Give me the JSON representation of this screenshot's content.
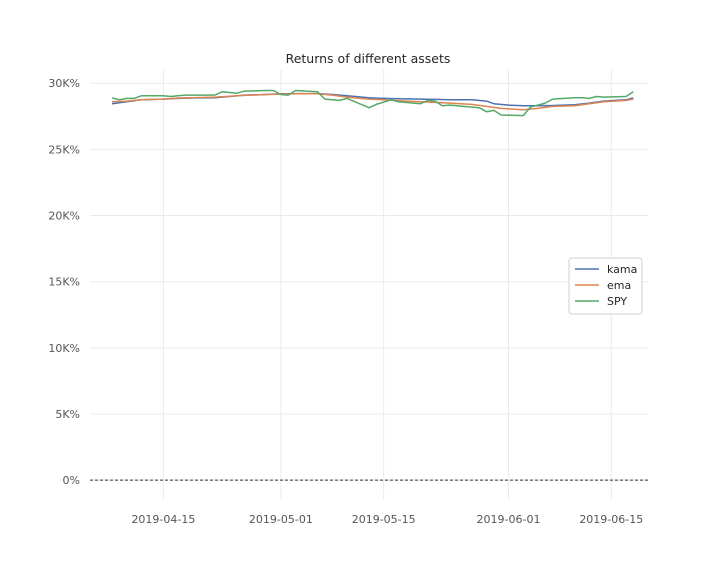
{
  "chart_data": {
    "type": "line",
    "title": "Returns of different assets",
    "xlabel": "",
    "ylabel": "",
    "x_range": [
      "2019-04-05",
      "2019-06-20"
    ],
    "ylim": [
      -1500,
      31000
    ],
    "y_ticks": [
      0,
      5000,
      10000,
      15000,
      20000,
      25000,
      30000
    ],
    "y_tick_labels": [
      "0%",
      "5K%",
      "10K%",
      "15K%",
      "20K%",
      "25K%",
      "30K%"
    ],
    "x_ticks": [
      "2019-04-15",
      "2019-05-01",
      "2019-05-15",
      "2019-06-01",
      "2019-06-15"
    ],
    "x_tick_labels": [
      "2019-04-15",
      "2019-05-01",
      "2019-05-15",
      "2019-06-01",
      "2019-06-15"
    ],
    "grid": true,
    "legend_position": "right",
    "reference_line": {
      "y": 0,
      "style": "dashed",
      "color": "#333333"
    },
    "series": [
      {
        "name": "kama",
        "color": "#4c72b0",
        "points": [
          [
            "2019-04-08",
            28450
          ],
          [
            "2019-04-10",
            28600
          ],
          [
            "2019-04-12",
            28750
          ],
          [
            "2019-04-15",
            28800
          ],
          [
            "2019-04-17",
            28850
          ],
          [
            "2019-04-19",
            28880
          ],
          [
            "2019-04-22",
            28900
          ],
          [
            "2019-04-24",
            29000
          ],
          [
            "2019-04-26",
            29100
          ],
          [
            "2019-04-29",
            29150
          ],
          [
            "2019-05-01",
            29200
          ],
          [
            "2019-05-03",
            29220
          ],
          [
            "2019-05-06",
            29220
          ],
          [
            "2019-05-08",
            29150
          ],
          [
            "2019-05-10",
            29050
          ],
          [
            "2019-05-13",
            28900
          ],
          [
            "2019-05-15",
            28850
          ],
          [
            "2019-05-17",
            28820
          ],
          [
            "2019-05-20",
            28800
          ],
          [
            "2019-05-22",
            28780
          ],
          [
            "2019-05-24",
            28750
          ],
          [
            "2019-05-27",
            28750
          ],
          [
            "2019-05-29",
            28650
          ],
          [
            "2019-05-30",
            28450
          ],
          [
            "2019-06-01",
            28350
          ],
          [
            "2019-06-03",
            28300
          ],
          [
            "2019-06-05",
            28300
          ],
          [
            "2019-06-07",
            28320
          ],
          [
            "2019-06-10",
            28380
          ],
          [
            "2019-06-12",
            28500
          ],
          [
            "2019-06-14",
            28650
          ],
          [
            "2019-06-17",
            28750
          ],
          [
            "2019-06-18",
            28900
          ]
        ]
      },
      {
        "name": "ema",
        "color": "#dd8452",
        "points": [
          [
            "2019-04-08",
            28600
          ],
          [
            "2019-04-10",
            28650
          ],
          [
            "2019-04-12",
            28750
          ],
          [
            "2019-04-15",
            28800
          ],
          [
            "2019-04-17",
            28880
          ],
          [
            "2019-04-19",
            28900
          ],
          [
            "2019-04-22",
            28950
          ],
          [
            "2019-04-24",
            29020
          ],
          [
            "2019-04-26",
            29080
          ],
          [
            "2019-04-29",
            29150
          ],
          [
            "2019-05-01",
            29180
          ],
          [
            "2019-05-03",
            29200
          ],
          [
            "2019-05-06",
            29200
          ],
          [
            "2019-05-08",
            29100
          ],
          [
            "2019-05-10",
            28950
          ],
          [
            "2019-05-13",
            28800
          ],
          [
            "2019-05-15",
            28750
          ],
          [
            "2019-05-17",
            28680
          ],
          [
            "2019-05-20",
            28600
          ],
          [
            "2019-05-22",
            28550
          ],
          [
            "2019-05-24",
            28500
          ],
          [
            "2019-05-27",
            28400
          ],
          [
            "2019-05-29",
            28250
          ],
          [
            "2019-05-31",
            28100
          ],
          [
            "2019-06-03",
            28000
          ],
          [
            "2019-06-05",
            28100
          ],
          [
            "2019-06-07",
            28250
          ],
          [
            "2019-06-10",
            28300
          ],
          [
            "2019-06-12",
            28450
          ],
          [
            "2019-06-14",
            28600
          ],
          [
            "2019-06-17",
            28700
          ],
          [
            "2019-06-18",
            28800
          ]
        ]
      },
      {
        "name": "SPY",
        "color": "#55a868",
        "points": [
          [
            "2019-04-08",
            28900
          ],
          [
            "2019-04-09",
            28750
          ],
          [
            "2019-04-10",
            28850
          ],
          [
            "2019-04-11",
            28850
          ],
          [
            "2019-04-12",
            29050
          ],
          [
            "2019-04-15",
            29050
          ],
          [
            "2019-04-16",
            29000
          ],
          [
            "2019-04-17",
            29050
          ],
          [
            "2019-04-18",
            29100
          ],
          [
            "2019-04-22",
            29100
          ],
          [
            "2019-04-23",
            29350
          ],
          [
            "2019-04-25",
            29250
          ],
          [
            "2019-04-26",
            29400
          ],
          [
            "2019-04-29",
            29450
          ],
          [
            "2019-04-30",
            29450
          ],
          [
            "2019-05-01",
            29150
          ],
          [
            "2019-05-02",
            29100
          ],
          [
            "2019-05-03",
            29450
          ],
          [
            "2019-05-06",
            29350
          ],
          [
            "2019-05-07",
            28800
          ],
          [
            "2019-05-09",
            28700
          ],
          [
            "2019-05-10",
            28850
          ],
          [
            "2019-05-13",
            28150
          ],
          [
            "2019-05-14",
            28400
          ],
          [
            "2019-05-16",
            28750
          ],
          [
            "2019-05-17",
            28600
          ],
          [
            "2019-05-20",
            28450
          ],
          [
            "2019-05-21",
            28700
          ],
          [
            "2019-05-22",
            28650
          ],
          [
            "2019-05-23",
            28300
          ],
          [
            "2019-05-24",
            28350
          ],
          [
            "2019-05-28",
            28150
          ],
          [
            "2019-05-29",
            27850
          ],
          [
            "2019-05-30",
            27950
          ],
          [
            "2019-05-31",
            27600
          ],
          [
            "2019-06-03",
            27550
          ],
          [
            "2019-06-04",
            28200
          ],
          [
            "2019-06-05",
            28350
          ],
          [
            "2019-06-06",
            28500
          ],
          [
            "2019-06-07",
            28800
          ],
          [
            "2019-06-10",
            28900
          ],
          [
            "2019-06-11",
            28900
          ],
          [
            "2019-06-12",
            28850
          ],
          [
            "2019-06-13",
            29000
          ],
          [
            "2019-06-14",
            28950
          ],
          [
            "2019-06-17",
            29000
          ],
          [
            "2019-06-18",
            29350
          ]
        ]
      }
    ]
  }
}
